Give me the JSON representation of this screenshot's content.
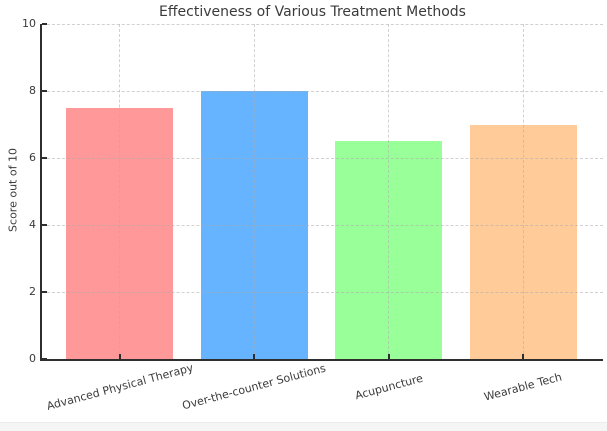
{
  "figure": {
    "background": "#ffffff",
    "bottom_strip_color": "#f5f5f5"
  },
  "chart_data": {
    "type": "bar",
    "title": "Effectiveness of Various Treatment Methods",
    "ylabel": "Score out of 10",
    "xlabel": "",
    "categories": [
      "Advanced Physical Therapy",
      "Over-the-counter Solutions",
      "Acupuncture",
      "Wearable Tech"
    ],
    "values": [
      7.5,
      8.0,
      6.5,
      7.0
    ],
    "bar_colors": [
      "#ff9999",
      "#66b3ff",
      "#99ff99",
      "#ffcc99"
    ],
    "ylim": [
      0,
      10
    ],
    "yticks": [
      0,
      2,
      4,
      6,
      8,
      10
    ],
    "grid": {
      "visible": true,
      "style": "dashed",
      "axes": "both",
      "drawn_above_bars": true
    },
    "tick_direction": "in",
    "x_tick_label_rotation_deg": 15,
    "legend_position": "none"
  }
}
